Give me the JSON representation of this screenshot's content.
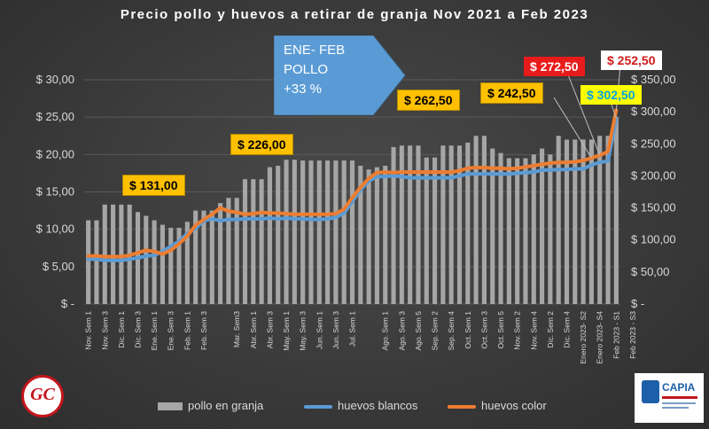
{
  "title": "Precio pollo y huevos a retirar de granja Nov 2021 a Feb 2023",
  "chart_data": {
    "type": "bar+line",
    "title": "Precio pollo y huevos a retirar de granja Nov 2021 a Feb 2023",
    "categories": [
      "Nov. Sem 1",
      "Nov. Sem 2",
      "Nov. Sem 3",
      "Nov. Sem 4",
      "Dic. Sem 1",
      "Dic. Sem 2",
      "Dic. Sem 3",
      "Dic. Sem 4",
      "Ene. Sem 1",
      "Ene. Sem 2",
      "Ene. Sem 3",
      "Ene. Sem 4",
      "Feb. Sem 1",
      "Feb. Sem 2",
      "Feb. Sem 3",
      "Feb. Sem 4",
      "Mar. Sem 1",
      "Mar. Sem 2",
      "Mar. Sem3",
      "Mar. Sem 4",
      "Abr. Sem 1",
      "Abr. Sem 2",
      "Abr. Sem 3",
      "Abr. Sem 4",
      "May. Sem 1",
      "May. Sem 2",
      "May. Sem 3",
      "May. Sem 4",
      "Jun. Sem 1",
      "Jun. Sem 2",
      "Jun. Sem 3",
      "Jun. Sem 4",
      "Jul. Sem 1",
      "Jul. Sem 2",
      "Jul. Sem 3",
      "Jul. Sem 4",
      "Ago. Sem 1",
      "Ago. Sem 2",
      "Ago. Sem 3",
      "Ago. Sem 4",
      "Ago. Sem 5",
      "Sep. Sem 1",
      "Sep. Sem 2",
      "Sep. Sem 3",
      "Sep. Sem 4",
      "Oct. Sem 1",
      "Oct. Sem 2",
      "Oct. Sem 3",
      "Oct. Sem 4",
      "Oct. Sem 5",
      "Nov. Sem 1",
      "Nov. Sem 2",
      "Nov. Sem 3",
      "Nov. Sem 4",
      "Dic. Sem 1",
      "Dic. Sem 2",
      "Dic. Sem 3",
      "Dic. Sem 4",
      "Enero 2023 - S1",
      "Enero 2023- S2",
      "Enero 2023 - S3",
      "Enero 2023- S4",
      "Feb 2023 - S1",
      "Feb 2023 - S2",
      "Feb 2023 - S3"
    ],
    "tick_labels": [
      "Nov. Sem 1",
      "",
      "Nov. Sem 3",
      "",
      "Dic. Sem 1",
      "",
      "Dic. Sem 3",
      "",
      "Ene. Sem 1",
      "",
      "Ene. Sem 3",
      "",
      "Feb. Sem 1",
      "",
      "Feb. Sem 3",
      "",
      "",
      "",
      "Mar. Sem3",
      "",
      "Abr. Sem 1",
      "",
      "Abr. Sem 3",
      "",
      "May. Sem 1",
      "",
      "May. Sem 3",
      "",
      "Jun. Sem 1",
      "",
      "Jun. Sem 3",
      "",
      "Jul. Sem 1",
      "",
      "",
      "",
      "Ago. Sem 1",
      "",
      "Ago. Sem 3",
      "",
      "Ago. Sem 5",
      "",
      "Sep. Sem 2",
      "",
      "Sep. Sem 4",
      "",
      "Oct. Sem 1",
      "",
      "Oct. Sem 3",
      "",
      "Oct. Sem 5",
      "",
      "Nov. Sem 2",
      "",
      "Nov. Sem 4",
      "",
      "Dic. Sem 2",
      "",
      "Dic. Sem 4",
      "",
      "Enero 2023- S2",
      "",
      "Enero 2023- S4",
      "",
      "Feb 2023 - S1",
      "",
      "Feb 2023 - S3"
    ],
    "series": [
      {
        "name": "pollo en granja",
        "kind": "bar",
        "axis": "left",
        "color": "#a6a6a6",
        "values": [
          11.2,
          11.2,
          13.3,
          13.3,
          13.3,
          13.3,
          12.3,
          11.8,
          11.2,
          10.6,
          10.2,
          10.2,
          11.0,
          12.5,
          12.5,
          12.5,
          13.5,
          14.2,
          14.2,
          16.7,
          16.7,
          16.7,
          18.3,
          18.5,
          19.3,
          19.3,
          19.2,
          19.2,
          19.2,
          19.2,
          19.2,
          19.2,
          19.2,
          18.5,
          18.0,
          18.3,
          18.5,
          21.0,
          21.2,
          21.2,
          21.2,
          19.6,
          19.6,
          21.2,
          21.2,
          21.2,
          21.6,
          22.5,
          22.5,
          20.8,
          20.2,
          19.5,
          19.5,
          19.5,
          20.0,
          20.8,
          20.0,
          22.5,
          22.0,
          22.0,
          22.0,
          22.0,
          22.5,
          22.5,
          25.0
        ]
      },
      {
        "name": "huevos blancos",
        "kind": "line",
        "axis": "right",
        "color": "#5b9bd5",
        "values": [
          70,
          70,
          68,
          68,
          68,
          70,
          72,
          75,
          76,
          82,
          90,
          98,
          110,
          118,
          130,
          133,
          130,
          132,
          132,
          133,
          133,
          133,
          134,
          133,
          134,
          133,
          133,
          132,
          132,
          133,
          135,
          142,
          160,
          178,
          192,
          199,
          199,
          200,
          199,
          197,
          197,
          197,
          197,
          197,
          197,
          200,
          203,
          203,
          203,
          203,
          203,
          203,
          204,
          205,
          206,
          209,
          209,
          210,
          210,
          211,
          211,
          217,
          221,
          223,
          290
        ]
      },
      {
        "name": "huevos color",
        "kind": "line",
        "axis": "right",
        "color": "#ed7d31",
        "values": [
          75,
          75,
          74,
          74,
          74,
          76,
          80,
          84,
          82,
          78,
          84,
          94,
          106,
          123,
          132,
          140,
          150,
          145,
          143,
          140,
          141,
          143,
          142,
          142,
          141,
          140,
          140,
          140,
          140,
          140,
          141,
          148,
          166,
          182,
          196,
          205,
          206,
          205,
          206,
          206,
          206,
          206,
          206,
          206,
          206,
          208,
          212,
          213,
          213,
          212,
          212,
          211,
          212,
          214,
          216,
          218,
          220,
          221,
          221,
          222,
          224,
          228,
          232,
          238,
          302.5
        ]
      }
    ],
    "left_axis": {
      "min": 0,
      "max": 30,
      "step": 5,
      "labels": [
        "$ -",
        "$ 5,00",
        "$ 10,00",
        "$ 15,00",
        "$ 20,00",
        "$ 25,00",
        "$ 30,00"
      ]
    },
    "right_axis": {
      "min": 0,
      "max": 350,
      "step": 50,
      "labels": [
        "$ -",
        "$ 50,00",
        "$ 100,00",
        "$ 150,00",
        "$ 200,00",
        "$ 250,00",
        "$ 300,00",
        "$ 350,00"
      ]
    },
    "grid": true,
    "legend": {
      "placement": "bottom"
    },
    "annotations": {
      "a1": "$ 131,00",
      "a2": "$ 226,00",
      "a3": "$ 262,50",
      "a4": "$ 242,50",
      "a5": "$ 272,50",
      "a6": "$ 252,50",
      "a7": "$ 302,50",
      "arrow_lines": [
        "ENE- FEB",
        "POLLO",
        "+33 %"
      ]
    }
  },
  "logos": {
    "left": "GC",
    "right": "CAPIA"
  }
}
